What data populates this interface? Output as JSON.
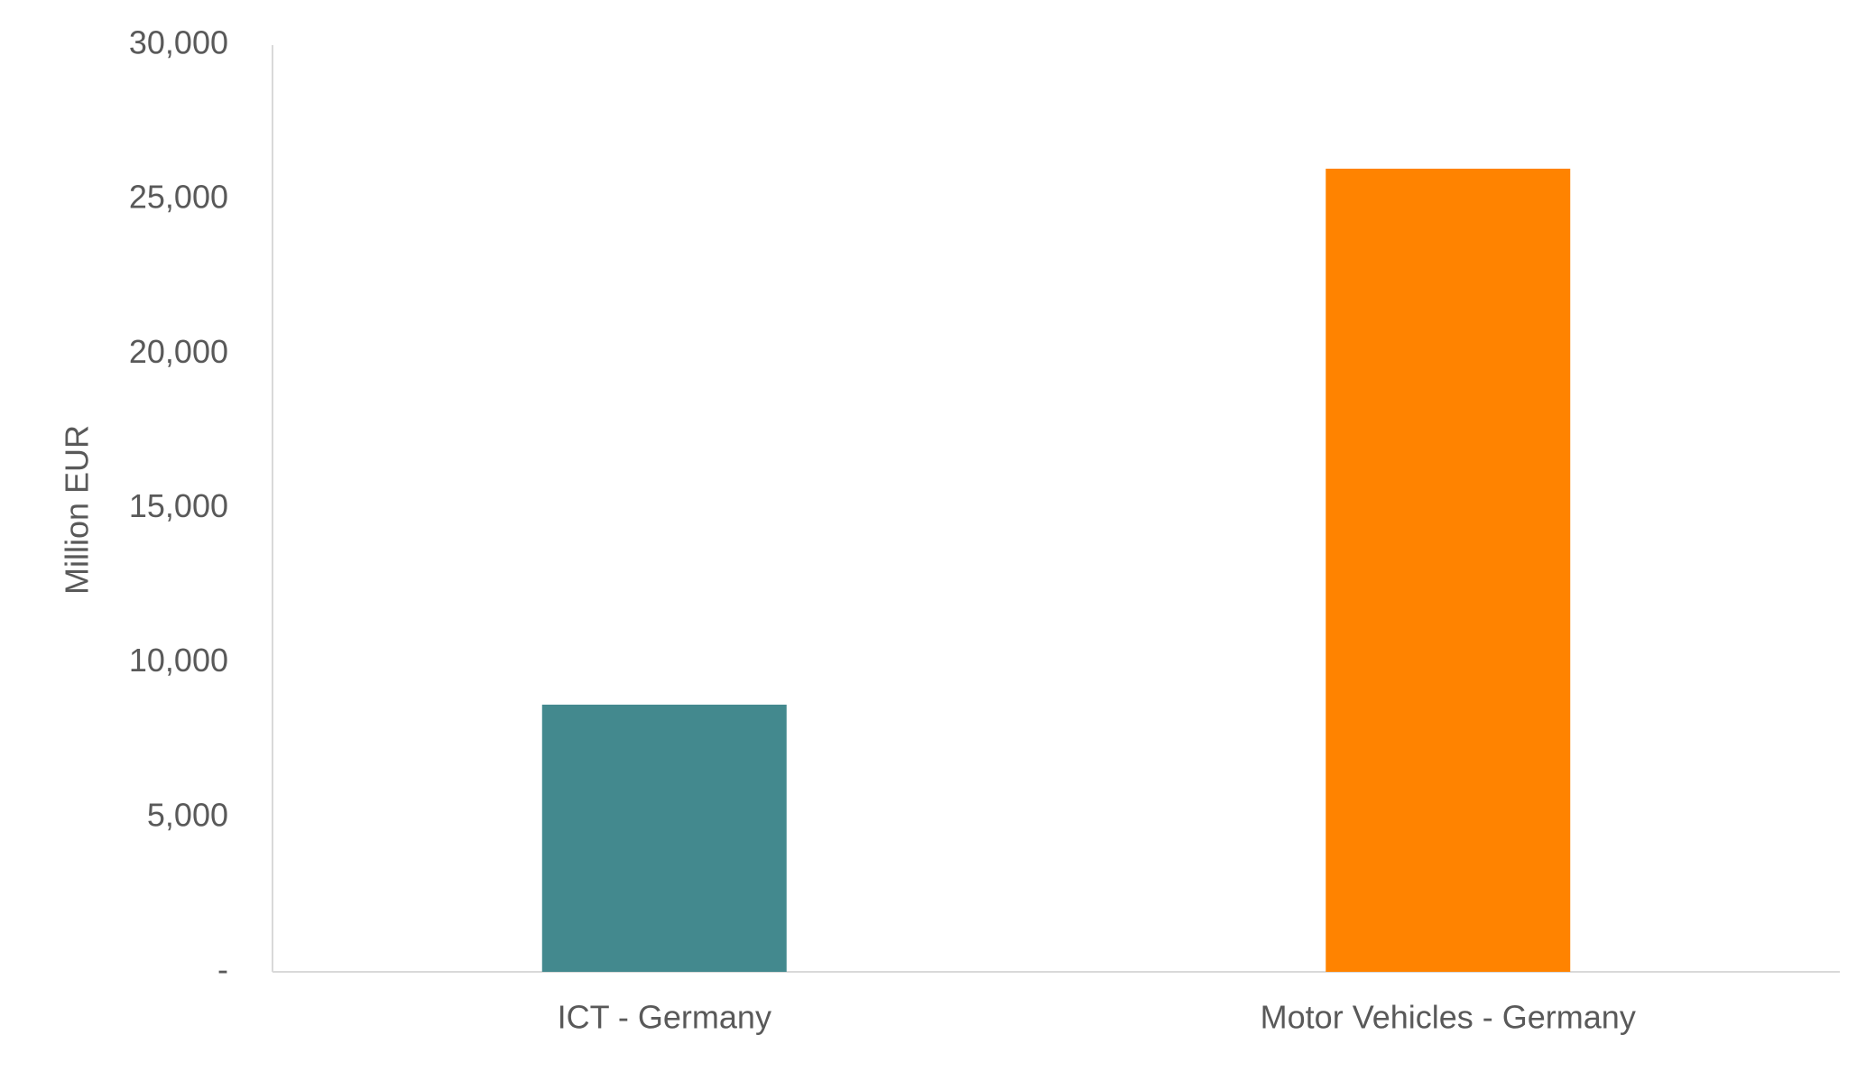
{
  "chart_data": {
    "type": "bar",
    "y_label": "Million EUR",
    "categories": [
      "ICT - Germany",
      "Motor Vehicles - Germany"
    ],
    "values": [
      8650,
      26000
    ],
    "colors": [
      "#43898e",
      "#ff8300"
    ],
    "ylim": [
      0,
      30000
    ],
    "yticks": [
      {
        "value": 0,
        "label": "-"
      },
      {
        "value": 5000,
        "label": "5,000"
      },
      {
        "value": 10000,
        "label": "10,000"
      },
      {
        "value": 15000,
        "label": "15,000"
      },
      {
        "value": 20000,
        "label": "20,000"
      },
      {
        "value": 25000,
        "label": "25,000"
      },
      {
        "value": 30000,
        "label": "30,000"
      }
    ],
    "grid": false
  }
}
